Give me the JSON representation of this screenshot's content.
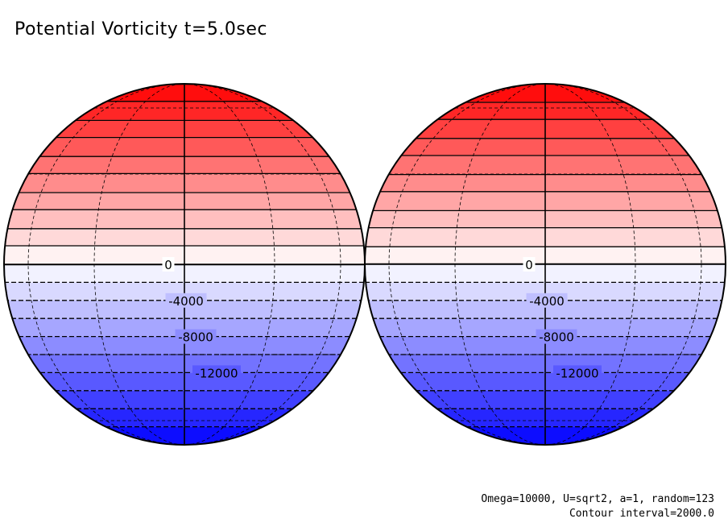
{
  "title": "Potential Vorticity t=5.0sec",
  "contour_labels": [
    "0",
    "4000",
    "8000",
    "12000"
  ],
  "annotations": {
    "params": "Omega=10000, U=sqrt2, a=1, random=123",
    "interval": "Contour interval=2000.0"
  },
  "colors": {
    "positive_max": "#ff0000",
    "negative_max": "#0000ff",
    "zero": "#ffffff",
    "contour": "#000000"
  },
  "globes": [
    {
      "name": "left-hemisphere"
    },
    {
      "name": "right-hemisphere"
    }
  ]
}
